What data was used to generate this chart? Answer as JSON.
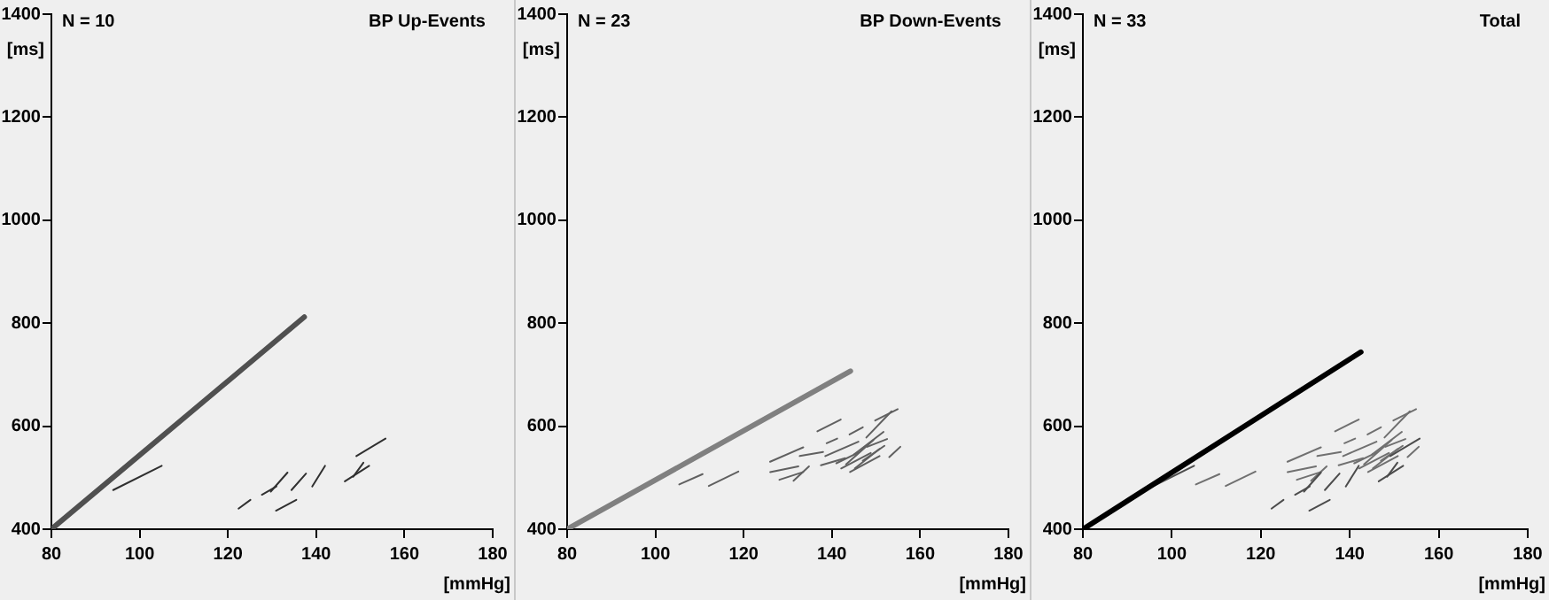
{
  "chart_data": [
    {
      "type": "line",
      "title": "BP Up-Events",
      "annotations": [
        "N = 10"
      ],
      "xlabel": "[mmHg]",
      "ylabel": "[ms]",
      "xlim": [
        80,
        180
      ],
      "xticks": [
        80,
        100,
        120,
        140,
        160,
        180
      ],
      "ylim": [
        400,
        1400
      ],
      "yticks": [
        400,
        600,
        800,
        1000,
        1200,
        1400
      ],
      "grid": false,
      "legend": false,
      "marker": "none",
      "line_style": "solid",
      "series": [
        {
          "color": "#505050",
          "x": [
            80,
            137.3
          ],
          "values": [
            400,
            812
          ]
        },
        {
          "color": "#303030",
          "x": [
            94,
            105
          ],
          "values": [
            476,
            523
          ]
        },
        {
          "color": "#303030",
          "x": [
            122.4,
            125.1
          ],
          "values": [
            440,
            457
          ]
        },
        {
          "color": "#303030",
          "x": [
            127.7,
            131
          ],
          "values": [
            467,
            483
          ]
        },
        {
          "color": "#303030",
          "x": [
            129.7,
            133.5
          ],
          "values": [
            473,
            510
          ]
        },
        {
          "color": "#303030",
          "x": [
            130.9,
            135.5
          ],
          "values": [
            436,
            457
          ]
        },
        {
          "color": "#303030",
          "x": [
            134.4,
            137.7
          ],
          "values": [
            476,
            508
          ]
        },
        {
          "color": "#303030",
          "x": [
            139.1,
            142
          ],
          "values": [
            483,
            523
          ]
        },
        {
          "color": "#303030",
          "x": [
            146.5,
            152
          ],
          "values": [
            493,
            523
          ]
        },
        {
          "color": "#303030",
          "x": [
            148.4,
            150.7
          ],
          "values": [
            502,
            529
          ]
        },
        {
          "color": "#303030",
          "x": [
            149.1,
            155.7
          ],
          "values": [
            542,
            576
          ]
        }
      ]
    },
    {
      "type": "line",
      "title": "BP Down-Events",
      "annotations": [
        "N = 23"
      ],
      "xlabel": "[mmHg]",
      "ylabel": "[ms]",
      "xlim": [
        80,
        180
      ],
      "xticks": [
        80,
        100,
        120,
        140,
        160,
        180
      ],
      "ylim": [
        400,
        1400
      ],
      "yticks": [
        400,
        600,
        800,
        1000,
        1200,
        1400
      ],
      "grid": false,
      "legend": false,
      "marker": "none",
      "line_style": "solid",
      "series": [
        {
          "color": "#808080",
          "x": [
            80,
            144.2
          ],
          "values": [
            400,
            707
          ]
        },
        {
          "color": "#606060",
          "x": [
            105.4,
            110.7
          ],
          "values": [
            487,
            507
          ]
        },
        {
          "color": "#606060",
          "x": [
            112.1,
            118.8
          ],
          "values": [
            484,
            512
          ]
        },
        {
          "color": "#606060",
          "x": [
            126,
            133.5
          ],
          "values": [
            531,
            559
          ]
        },
        {
          "color": "#606060",
          "x": [
            126,
            132.4
          ],
          "values": [
            511,
            522
          ]
        },
        {
          "color": "#606060",
          "x": [
            128.1,
            133.5
          ],
          "values": [
            496,
            511
          ]
        },
        {
          "color": "#606060",
          "x": [
            131.3,
            134.8
          ],
          "values": [
            494,
            522
          ]
        },
        {
          "color": "#606060",
          "x": [
            132.7,
            138
          ],
          "values": [
            542,
            550
          ]
        },
        {
          "color": "#606060",
          "x": [
            136.7,
            142
          ],
          "values": [
            590,
            613
          ]
        },
        {
          "color": "#606060",
          "x": [
            138.8,
            141.2
          ],
          "values": [
            567,
            576
          ]
        },
        {
          "color": "#606060",
          "x": [
            137.5,
            143
          ],
          "values": [
            524,
            538
          ]
        },
        {
          "color": "#606060",
          "x": [
            138.5,
            146
          ],
          "values": [
            542,
            570
          ]
        },
        {
          "color": "#606060",
          "x": [
            141,
            146
          ],
          "values": [
            528,
            549
          ]
        },
        {
          "color": "#606060",
          "x": [
            142.1,
            148.8
          ],
          "values": [
            518,
            548
          ]
        },
        {
          "color": "#606060",
          "x": [
            143.2,
            149.4
          ],
          "values": [
            526,
            573
          ]
        },
        {
          "color": "#606060",
          "x": [
            144.1,
            150.8
          ],
          "values": [
            511,
            542
          ]
        },
        {
          "color": "#606060",
          "x": [
            145.2,
            150.8
          ],
          "values": [
            518,
            556
          ]
        },
        {
          "color": "#606060",
          "x": [
            147,
            151.9
          ],
          "values": [
            533,
            562
          ]
        },
        {
          "color": "#606060",
          "x": [
            148,
            152.5
          ],
          "values": [
            560,
            575
          ]
        },
        {
          "color": "#606060",
          "x": [
            147.8,
            153.5
          ],
          "values": [
            578,
            629
          ]
        },
        {
          "color": "#606060",
          "x": [
            149.8,
            154.9
          ],
          "values": [
            611,
            633
          ]
        },
        {
          "color": "#606060",
          "x": [
            144,
            147
          ],
          "values": [
            584,
            598
          ]
        },
        {
          "color": "#606060",
          "x": [
            145,
            151.7
          ],
          "values": [
            545,
            589
          ]
        },
        {
          "color": "#606060",
          "x": [
            153,
            155.5
          ],
          "values": [
            540,
            560
          ]
        }
      ]
    },
    {
      "type": "line",
      "title": "Total",
      "annotations": [
        "N = 33"
      ],
      "xlabel": "[mmHg]",
      "ylabel": "[ms]",
      "xlim": [
        80,
        180
      ],
      "xticks": [
        80,
        100,
        120,
        140,
        160,
        180
      ],
      "ylim": [
        400,
        1400
      ],
      "yticks": [
        400,
        600,
        800,
        1000,
        1200,
        1400
      ],
      "grid": false,
      "legend": false,
      "marker": "none",
      "line_style": "solid",
      "series": [
        {
          "color": "#000000",
          "x": [
            80,
            142.5
          ],
          "values": [
            400,
            744
          ]
        },
        {
          "color": "#4c4c4c",
          "x": [
            94,
            105
          ],
          "values": [
            476,
            523
          ]
        },
        {
          "color": "#4c4c4c",
          "x": [
            122.4,
            125.1
          ],
          "values": [
            440,
            457
          ]
        },
        {
          "color": "#4c4c4c",
          "x": [
            127.7,
            131
          ],
          "values": [
            467,
            483
          ]
        },
        {
          "color": "#4c4c4c",
          "x": [
            129.7,
            133.5
          ],
          "values": [
            473,
            510
          ]
        },
        {
          "color": "#4c4c4c",
          "x": [
            130.9,
            135.5
          ],
          "values": [
            436,
            457
          ]
        },
        {
          "color": "#4c4c4c",
          "x": [
            134.4,
            137.7
          ],
          "values": [
            476,
            508
          ]
        },
        {
          "color": "#4c4c4c",
          "x": [
            139.1,
            142
          ],
          "values": [
            483,
            523
          ]
        },
        {
          "color": "#4c4c4c",
          "x": [
            146.5,
            152
          ],
          "values": [
            493,
            523
          ]
        },
        {
          "color": "#4c4c4c",
          "x": [
            148.4,
            150.7
          ],
          "values": [
            502,
            529
          ]
        },
        {
          "color": "#4c4c4c",
          "x": [
            149.1,
            155.7
          ],
          "values": [
            542,
            576
          ]
        },
        {
          "color": "#707070",
          "x": [
            105.4,
            110.7
          ],
          "values": [
            487,
            507
          ]
        },
        {
          "color": "#707070",
          "x": [
            112.1,
            118.8
          ],
          "values": [
            484,
            512
          ]
        },
        {
          "color": "#707070",
          "x": [
            126,
            133.5
          ],
          "values": [
            531,
            559
          ]
        },
        {
          "color": "#707070",
          "x": [
            126,
            132.4
          ],
          "values": [
            511,
            522
          ]
        },
        {
          "color": "#707070",
          "x": [
            128.1,
            133.5
          ],
          "values": [
            496,
            511
          ]
        },
        {
          "color": "#707070",
          "x": [
            131.3,
            134.8
          ],
          "values": [
            494,
            522
          ]
        },
        {
          "color": "#707070",
          "x": [
            132.7,
            138
          ],
          "values": [
            542,
            550
          ]
        },
        {
          "color": "#707070",
          "x": [
            136.7,
            142
          ],
          "values": [
            590,
            613
          ]
        },
        {
          "color": "#707070",
          "x": [
            138.8,
            141.2
          ],
          "values": [
            567,
            576
          ]
        },
        {
          "color": "#707070",
          "x": [
            137.5,
            143
          ],
          "values": [
            524,
            538
          ]
        },
        {
          "color": "#707070",
          "x": [
            138.5,
            146
          ],
          "values": [
            542,
            570
          ]
        },
        {
          "color": "#707070",
          "x": [
            141,
            146
          ],
          "values": [
            528,
            549
          ]
        },
        {
          "color": "#707070",
          "x": [
            142.1,
            148.8
          ],
          "values": [
            518,
            548
          ]
        },
        {
          "color": "#707070",
          "x": [
            143.2,
            149.4
          ],
          "values": [
            526,
            573
          ]
        },
        {
          "color": "#707070",
          "x": [
            144.1,
            150.8
          ],
          "values": [
            511,
            542
          ]
        },
        {
          "color": "#707070",
          "x": [
            145.2,
            150.8
          ],
          "values": [
            518,
            556
          ]
        },
        {
          "color": "#707070",
          "x": [
            147,
            151.9
          ],
          "values": [
            533,
            562
          ]
        },
        {
          "color": "#707070",
          "x": [
            148,
            152.5
          ],
          "values": [
            560,
            575
          ]
        },
        {
          "color": "#707070",
          "x": [
            147.8,
            153.5
          ],
          "values": [
            578,
            629
          ]
        },
        {
          "color": "#707070",
          "x": [
            149.8,
            154.9
          ],
          "values": [
            611,
            633
          ]
        },
        {
          "color": "#707070",
          "x": [
            144,
            147
          ],
          "values": [
            584,
            598
          ]
        },
        {
          "color": "#707070",
          "x": [
            145,
            151.7
          ],
          "values": [
            545,
            589
          ]
        },
        {
          "color": "#707070",
          "x": [
            153,
            155.5
          ],
          "values": [
            540,
            560
          ]
        }
      ]
    }
  ]
}
